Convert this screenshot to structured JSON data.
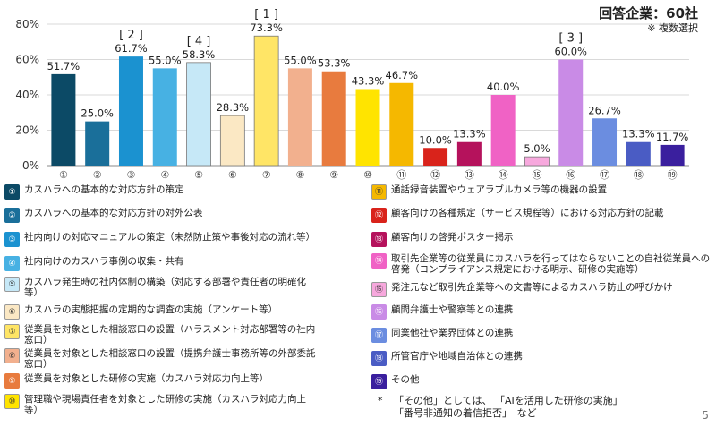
{
  "respondents": "回答企業：60社",
  "multiple_answers": "※ 複数選択",
  "chart_data": {
    "type": "bar",
    "categories": [
      "①",
      "②",
      "③",
      "④",
      "⑤",
      "⑥",
      "⑦",
      "⑧",
      "⑨",
      "⑩",
      "⑪",
      "⑫",
      "⑬",
      "⑭",
      "⑮",
      "⑯",
      "⑰",
      "⑱",
      "⑲"
    ],
    "values": [
      51.7,
      25.0,
      61.7,
      55.0,
      58.3,
      28.3,
      73.3,
      55.0,
      53.3,
      43.3,
      46.7,
      10.0,
      13.3,
      40.0,
      5.0,
      60.0,
      26.7,
      13.3,
      11.7
    ],
    "value_labels": [
      "51.7%",
      "25.0%",
      "61.7%",
      "55.0%",
      "58.3%",
      "28.3%",
      "73.3%",
      "55.0%",
      "53.3%",
      "43.3%",
      "46.7%",
      "10.0%",
      "13.3%",
      "40.0%",
      "5.0%",
      "60.0%",
      "26.7%",
      "13.3%",
      "11.7%"
    ],
    "colors": [
      "#0c4a66",
      "#1a6f9a",
      "#1b92d0",
      "#47b1e3",
      "#c6e8f7",
      "#fbe8c4",
      "#ffe566",
      "#f2b08e",
      "#e87b3e",
      "#ffe400",
      "#f5b800",
      "#d9231b",
      "#b5125c",
      "#f062c5",
      "#f7a8dd",
      "#c98be6",
      "#6b8de0",
      "#4a5cc4",
      "#3a1f9e"
    ],
    "ylim": [
      0,
      80
    ],
    "yticks": [
      "0%",
      "20%",
      "40%",
      "60%",
      "80%"
    ],
    "rank_labels": [
      {
        "index": 6,
        "text": "[ 1 ]"
      },
      {
        "index": 2,
        "text": "[ 2 ]"
      },
      {
        "index": 15,
        "text": "[ 3 ]"
      },
      {
        "index": 4,
        "text": "[ 4 ]"
      }
    ],
    "grid": "horizontal"
  },
  "legend": {
    "left": [
      {
        "num": "①",
        "color": "#0c4a66",
        "text": "カスハラへの基本的な対応方針の策定"
      },
      {
        "num": "②",
        "color": "#1a6f9a",
        "text": "カスハラへの基本的な対応方針の対外公表"
      },
      {
        "num": "③",
        "color": "#1b92d0",
        "text": "社内向けの対応マニュアルの策定（未然防止策や事後対応の流れ等）"
      },
      {
        "num": "④",
        "color": "#47b1e3",
        "text": "社内向けのカスハラ事例の収集・共有"
      },
      {
        "num": "⑤",
        "color": "#c6e8f7",
        "text": "カスハラ発生時の社内体制の構築（対応する部署や責任者の明確化等）"
      },
      {
        "num": "⑥",
        "color": "#fbe8c4",
        "text": "カスハラの実態把握の定期的な調査の実施（アンケート等）"
      },
      {
        "num": "⑦",
        "color": "#ffe566",
        "text": "従業員を対象とした相談窓口の設置（ハラスメント対応部署等の社内窓口）"
      },
      {
        "num": "⑧",
        "color": "#f2b08e",
        "text": "従業員を対象とした相談窓口の設置（提携弁護士事務所等の外部委託窓口）"
      },
      {
        "num": "⑨",
        "color": "#e87b3e",
        "text": "従業員を対象とした研修の実施（カスハラ対応力向上等）"
      },
      {
        "num": "⑩",
        "color": "#ffe400",
        "text": "管理職や現場責任者を対象とした研修の実施（カスハラ対応力向上等）"
      }
    ],
    "right": [
      {
        "num": "⑪",
        "color": "#f5b800",
        "text": "通話録音装置やウェアラブルカメラ等の機器の設置"
      },
      {
        "num": "⑫",
        "color": "#d9231b",
        "text": "顧客向けの各種規定（サービス規程等）における対応方針の記載"
      },
      {
        "num": "⑬",
        "color": "#b5125c",
        "text": "顧客向けの啓発ポスター掲示"
      },
      {
        "num": "⑭",
        "color": "#f062c5",
        "text": "取引先企業等の従業員にカスハラを行ってはならないことの自社従業員への啓発（コンプライアンス規定における明示、研修の実施等）"
      },
      {
        "num": "⑮",
        "color": "#f7a8dd",
        "text": "発注元など取引先企業等への文書等によるカスハラ防止の呼びかけ"
      },
      {
        "num": "⑯",
        "color": "#c98be6",
        "text": "顧問弁護士や警察等との連携"
      },
      {
        "num": "⑰",
        "color": "#6b8de0",
        "text": "同業他社や業界団体との連携"
      },
      {
        "num": "⑱",
        "color": "#4a5cc4",
        "text": "所管官庁や地域自治体との連携"
      },
      {
        "num": "⑲",
        "color": "#3a1f9e",
        "text": "その他"
      }
    ]
  },
  "note": {
    "mark": "*",
    "line1": "「その他」としては、 「AIを活用した研修の実施」",
    "line2": "「番号非通知の着信拒否」　など"
  },
  "page_number": "5"
}
